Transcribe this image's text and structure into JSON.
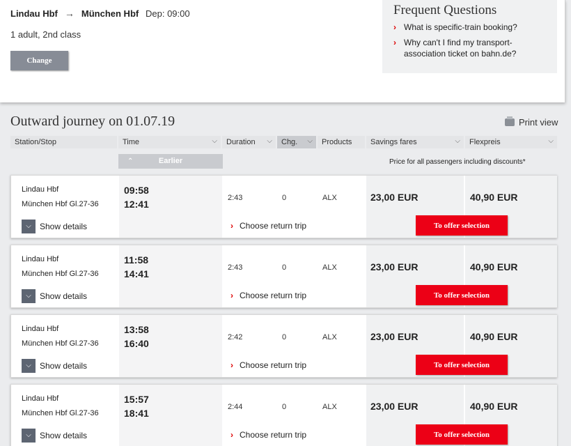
{
  "route": {
    "from": "Lindau Hbf",
    "to": "München Hbf",
    "departure": "Dep: 09:00",
    "passengers": "1 adult, 2nd class",
    "change_label": "Change"
  },
  "faq": {
    "title": "Frequent Questions",
    "items": [
      {
        "label": "What is specific-train booking?"
      },
      {
        "label": "Why can't I find my transport-association ticket on bahn.de?"
      }
    ]
  },
  "outward": {
    "title": "Outward journey on 01.07.19",
    "print_label": "Print view",
    "earlier_label": "Earlier",
    "price_note": "Price for all passengers including discounts*"
  },
  "columns": [
    {
      "label": "Station/Stop"
    },
    {
      "label": "Time"
    },
    {
      "label": "Duration"
    },
    {
      "label": "Chg."
    },
    {
      "label": "Products"
    },
    {
      "label": "Savings fares"
    },
    {
      "label": "Flexpreis"
    }
  ],
  "journeys": [
    {
      "from": "Lindau Hbf",
      "to": "München Hbf Gl.27-36",
      "dep": "09:58",
      "arr": "12:41",
      "duration": "2:43",
      "changes": "0",
      "products": "ALX",
      "saving": "23,00 EUR",
      "flex": "40,90 EUR"
    },
    {
      "from": "Lindau Hbf",
      "to": "München Hbf Gl.27-36",
      "dep": "11:58",
      "arr": "14:41",
      "duration": "2:43",
      "changes": "0",
      "products": "ALX",
      "saving": "23,00 EUR",
      "flex": "40,90 EUR"
    },
    {
      "from": "Lindau Hbf",
      "to": "München Hbf Gl.27-36",
      "dep": "13:58",
      "arr": "16:40",
      "duration": "2:42",
      "changes": "0",
      "products": "ALX",
      "saving": "23,00 EUR",
      "flex": "40,90 EUR"
    },
    {
      "from": "Lindau Hbf",
      "to": "München Hbf Gl.27-36",
      "dep": "15:57",
      "arr": "18:41",
      "duration": "2:44",
      "changes": "0",
      "products": "ALX",
      "saving": "23,00 EUR",
      "flex": "40,90 EUR"
    }
  ],
  "labels": {
    "show_details": "Show details",
    "choose_return": "Choose return trip",
    "offer_selection": "To offer selection"
  },
  "colors": {
    "accent": "#ec0016",
    "button_grey": "#878c96"
  }
}
